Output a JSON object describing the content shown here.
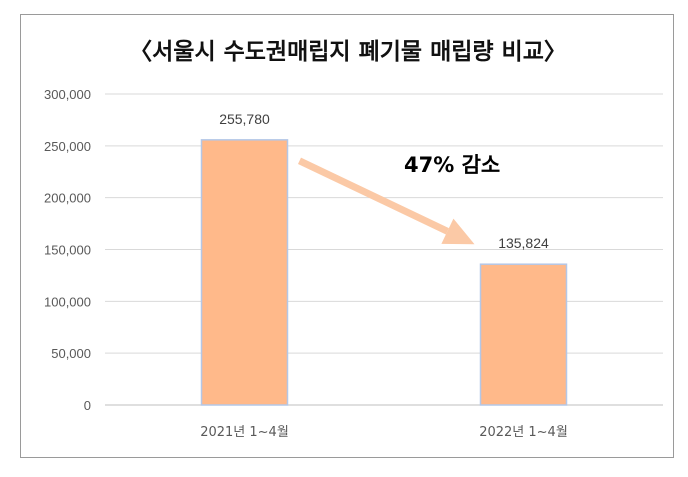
{
  "chart_data": {
    "type": "bar",
    "title": "〈서울시 수도권매립지 폐기물 매립량 비교〉",
    "categories": [
      "2021년 1~4월",
      "2022년 1~4월"
    ],
    "values": [
      255780,
      135824
    ],
    "value_labels": [
      "255,780",
      "135,824"
    ],
    "ylim": [
      0,
      300000
    ],
    "yticks": [
      0,
      50000,
      100000,
      150000,
      200000,
      250000,
      300000
    ],
    "ytick_labels": [
      "0",
      "50,000",
      "100,000",
      "150,000",
      "200,000",
      "250,000",
      "300,000"
    ],
    "grid": true,
    "annotation": "47% 감소",
    "colors": {
      "bar": "#FFB98A",
      "bar_edge": "#B4C7E7",
      "arrow": "#FBC9A6",
      "grid": "#D9D9D9",
      "axis": "#BFBFBF"
    }
  }
}
